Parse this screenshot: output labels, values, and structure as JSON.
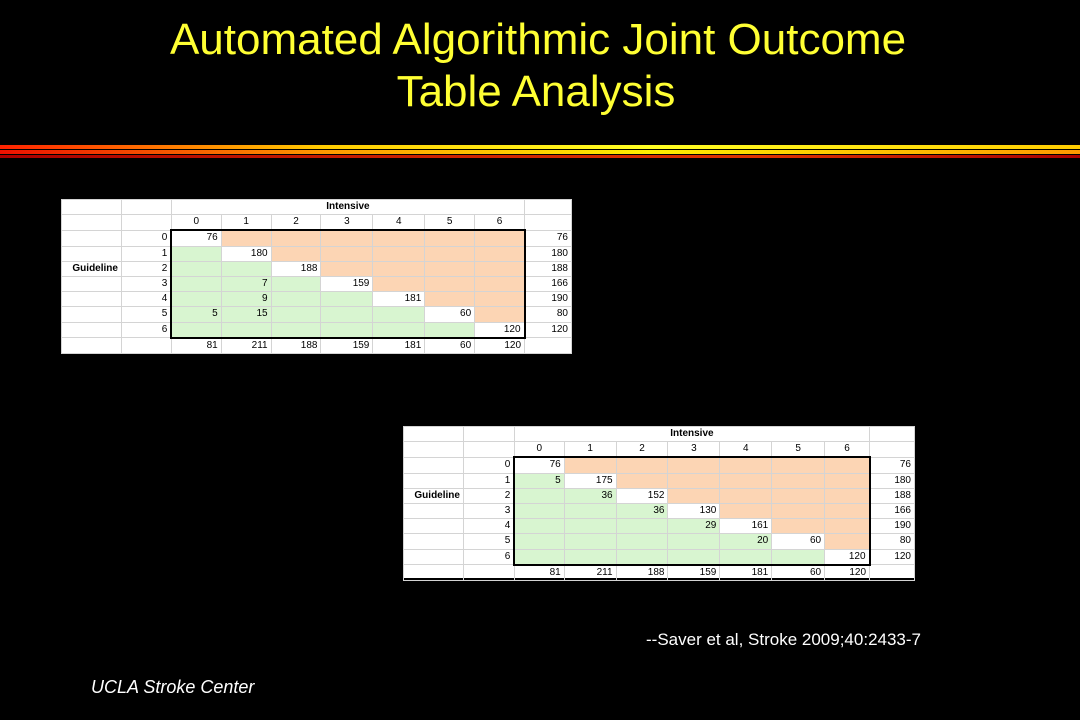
{
  "title": {
    "line1": "Automated Algorithmic Joint Outcome",
    "line2": "Table Analysis"
  },
  "table_top": {
    "col_group_label": "Intensive",
    "row_group_label": "Guideline",
    "col_headers": [
      "0",
      "1",
      "2",
      "3",
      "4",
      "5",
      "6"
    ],
    "row_headers": [
      "0",
      "1",
      "2",
      "3",
      "4",
      "5",
      "6"
    ],
    "cells": [
      [
        "76",
        "",
        "",
        "",
        "",
        "",
        ""
      ],
      [
        "",
        "180",
        "",
        "",
        "",
        "",
        ""
      ],
      [
        "",
        "",
        "188",
        "",
        "",
        "",
        ""
      ],
      [
        "",
        "7",
        "",
        "159",
        "",
        "",
        ""
      ],
      [
        "",
        "9",
        "",
        "",
        "181",
        "",
        ""
      ],
      [
        "5",
        "15",
        "",
        "",
        "",
        "60",
        ""
      ],
      [
        "",
        "",
        "",
        "",
        "",
        "",
        "120"
      ]
    ],
    "row_totals": [
      "76",
      "180",
      "188",
      "166",
      "190",
      "80",
      "120"
    ],
    "col_totals": [
      "81",
      "211",
      "188",
      "159",
      "181",
      "60",
      "120"
    ]
  },
  "table_bottom": {
    "col_group_label": "Intensive",
    "row_group_label": "Guideline",
    "col_headers": [
      "0",
      "1",
      "2",
      "3",
      "4",
      "5",
      "6"
    ],
    "row_headers": [
      "0",
      "1",
      "2",
      "3",
      "4",
      "5",
      "6"
    ],
    "cells": [
      [
        "76",
        "",
        "",
        "",
        "",
        "",
        ""
      ],
      [
        "5",
        "175",
        "",
        "",
        "",
        "",
        ""
      ],
      [
        "",
        "36",
        "152",
        "",
        "",
        "",
        ""
      ],
      [
        "",
        "",
        "36",
        "130",
        "",
        "",
        ""
      ],
      [
        "",
        "",
        "",
        "29",
        "161",
        "",
        ""
      ],
      [
        "",
        "",
        "",
        "",
        "20",
        "60",
        ""
      ],
      [
        "",
        "",
        "",
        "",
        "",
        "",
        "120"
      ]
    ],
    "row_totals": [
      "76",
      "180",
      "188",
      "166",
      "190",
      "80",
      "120"
    ],
    "col_totals": [
      "81",
      "211",
      "188",
      "159",
      "181",
      "60",
      "120"
    ]
  },
  "citation": "--Saver et al, Stroke 2009;40:2433-7",
  "footer": "UCLA Stroke Center",
  "colors": {
    "title": "#ffff33",
    "upper_triangle": "#fcd5b4",
    "lower_triangle": "#d8f5d0",
    "background": "#000000"
  }
}
